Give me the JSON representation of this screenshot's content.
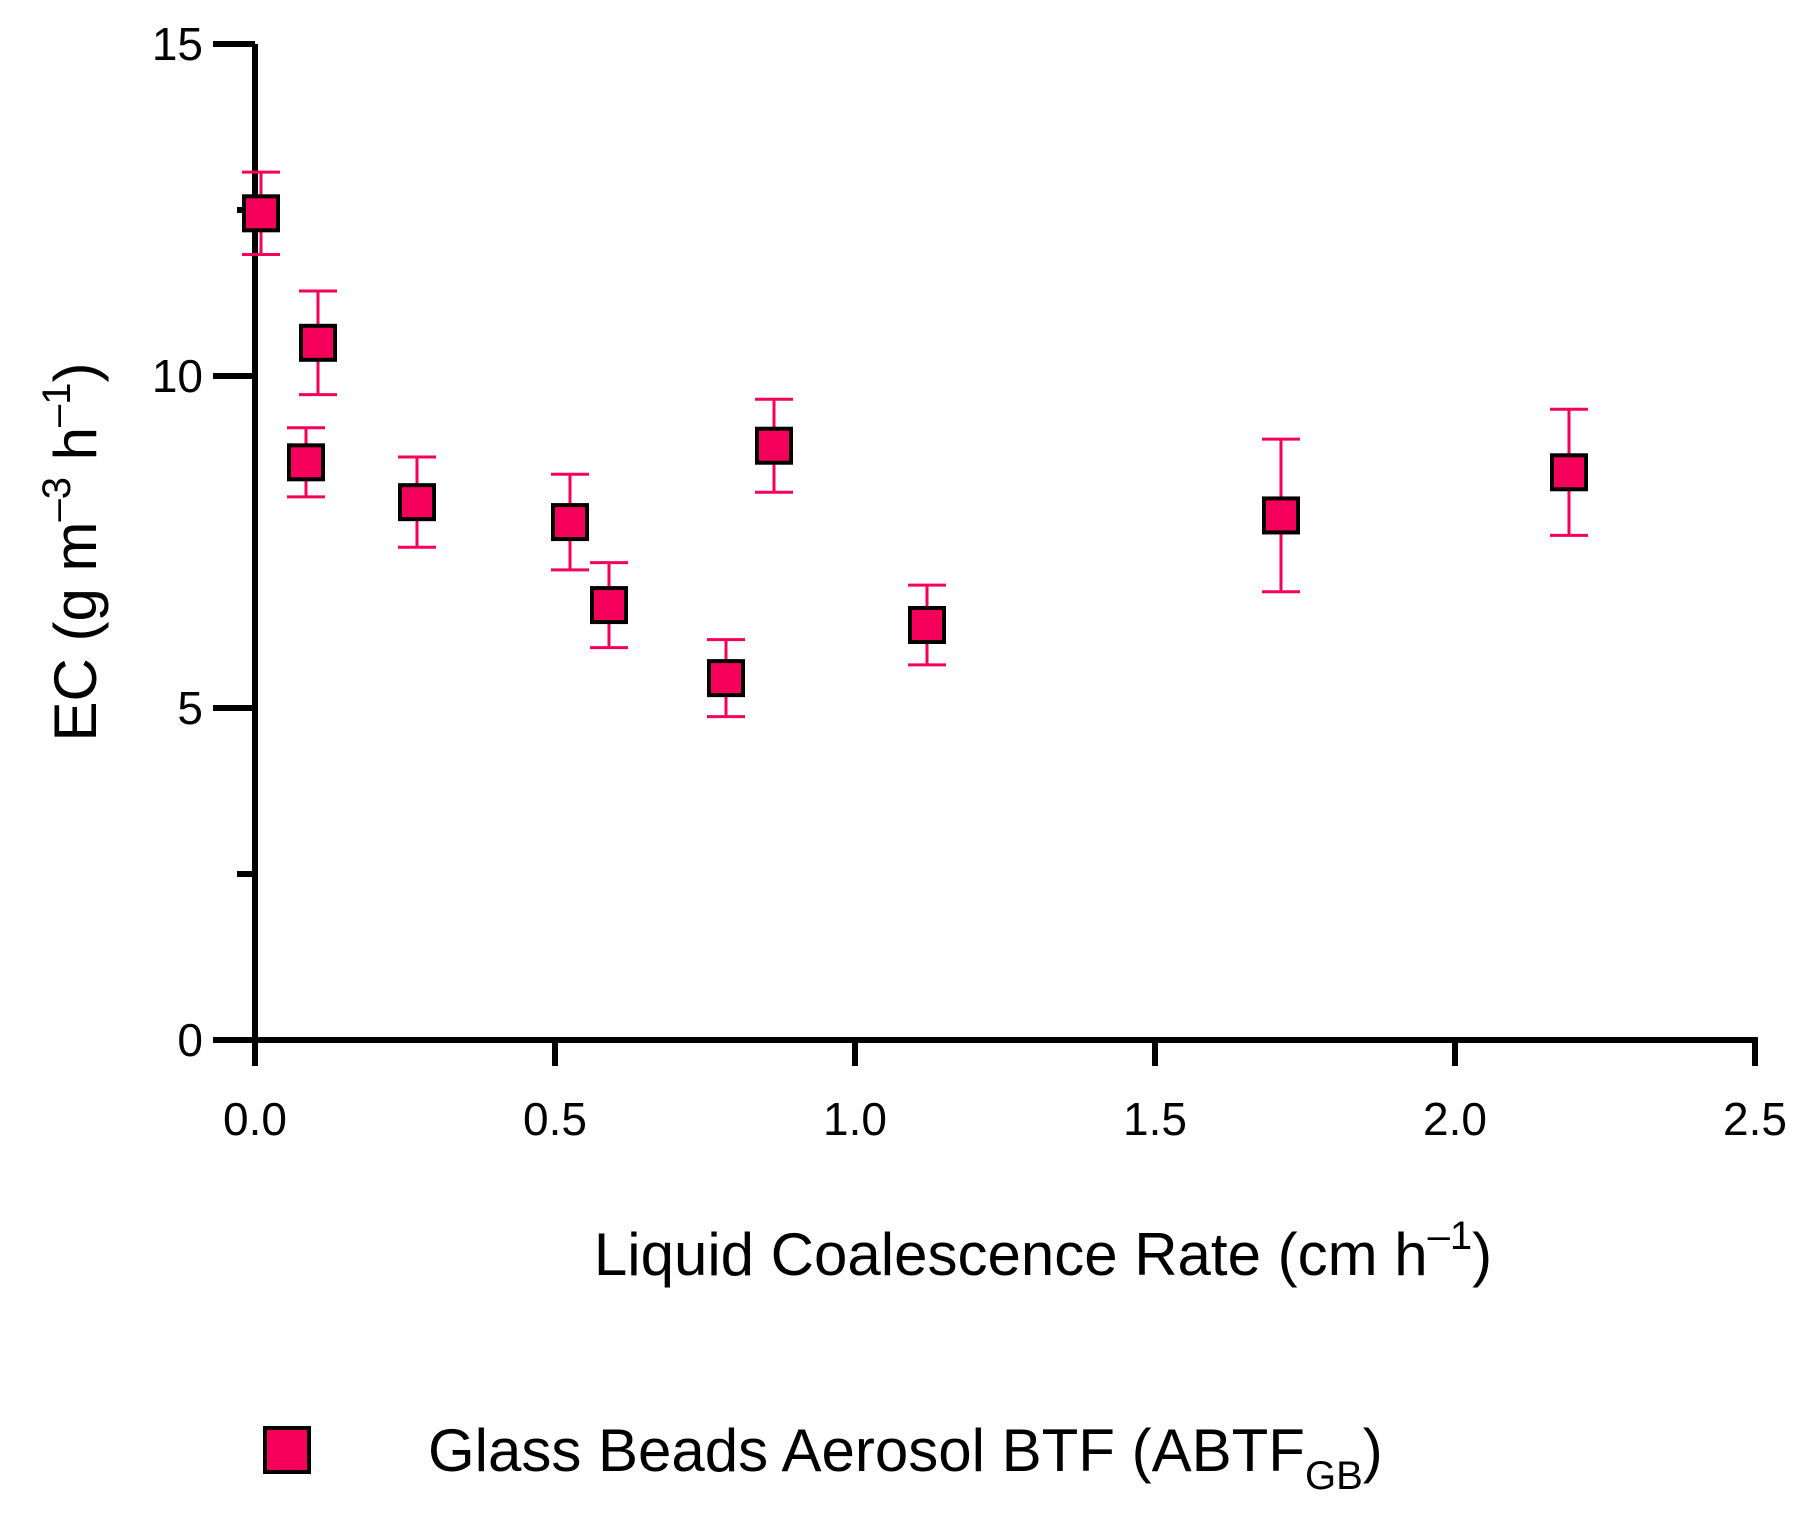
{
  "chart_data": {
    "type": "scatter",
    "title": "",
    "xlabel": {
      "main": "Liquid Coalescence Rate (cm h",
      "sup": "–1",
      "close": ")"
    },
    "ylabel": {
      "part1": "EC (g m",
      "sup1": "–3",
      "part2": " h",
      "sup2": "–1",
      "close": ")"
    },
    "xlim": [
      0,
      2.5
    ],
    "ylim": [
      0,
      15
    ],
    "x_ticks": [
      0.0,
      0.5,
      1.0,
      1.5,
      2.0,
      2.5
    ],
    "x_tick_labels": [
      "0.0",
      "0.5",
      "1.0",
      "1.5",
      "2.0",
      "2.5"
    ],
    "y_ticks": [
      0,
      5,
      10,
      15
    ],
    "y_tick_labels": [
      "0",
      "5",
      "10",
      "15"
    ],
    "y_minor_ticks": [
      2.5,
      12.5
    ],
    "grid": false,
    "legend_position": "bottom",
    "series": [
      {
        "name": "Glass Beads Aerosol BTF (ABTF",
        "name_sub": "GB",
        "name_close": ")",
        "marker": "square",
        "color": "#F5005A",
        "edge_color": "#000000",
        "error_color": "#F5005A",
        "points": [
          {
            "x": 0.01,
            "y": 12.45,
            "err": 0.62
          },
          {
            "x": 0.085,
            "y": 8.7,
            "err": 0.52
          },
          {
            "x": 0.105,
            "y": 10.5,
            "err": 0.78
          },
          {
            "x": 0.27,
            "y": 8.1,
            "err": 0.68
          },
          {
            "x": 0.525,
            "y": 7.8,
            "err": 0.72
          },
          {
            "x": 0.59,
            "y": 6.55,
            "err": 0.64
          },
          {
            "x": 0.785,
            "y": 5.45,
            "err": 0.58
          },
          {
            "x": 0.865,
            "y": 8.95,
            "err": 0.7
          },
          {
            "x": 1.12,
            "y": 6.25,
            "err": 0.6
          },
          {
            "x": 1.71,
            "y": 7.9,
            "err": 1.15
          },
          {
            "x": 2.19,
            "y": 8.55,
            "err": 0.95
          }
        ]
      }
    ]
  }
}
